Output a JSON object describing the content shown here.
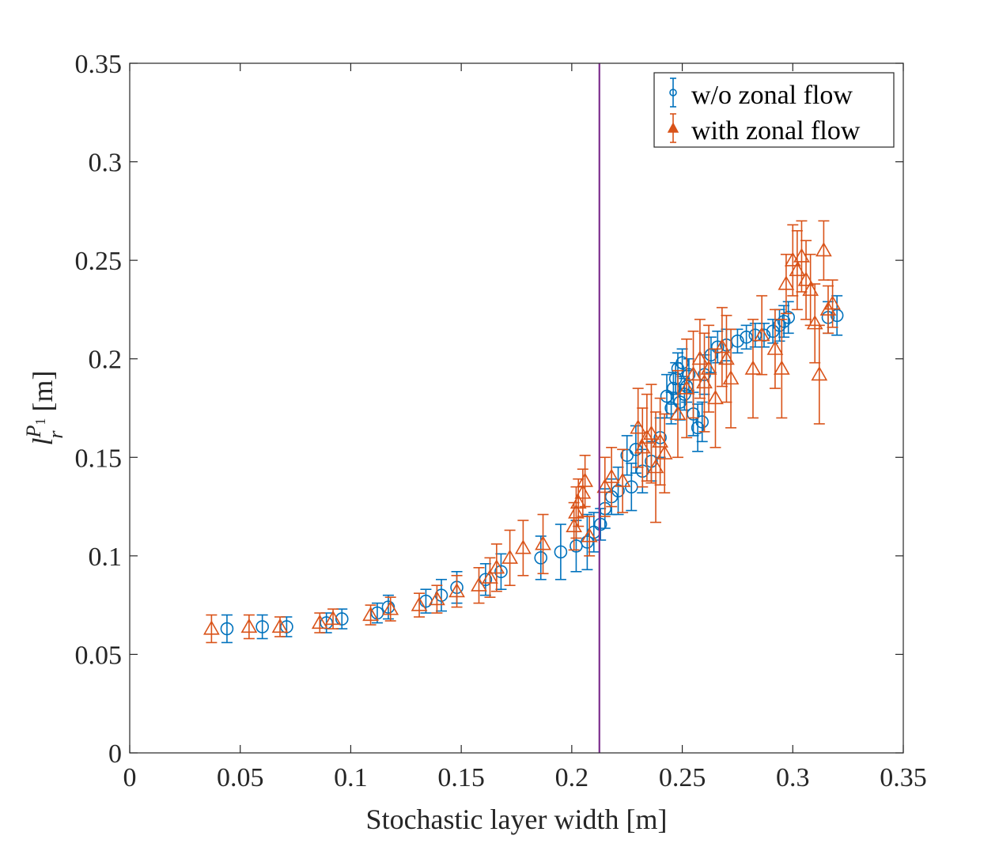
{
  "chart_data": {
    "type": "scatter",
    "title": "",
    "xlabel": "Stochastic layer width [m]",
    "ylabel_base": "l",
    "ylabel_sub": "r",
    "ylabel_sup_base": "P",
    "ylabel_sup_sub": "1",
    "ylabel_unit": "[m]",
    "xlim": [
      0,
      0.35
    ],
    "ylim": [
      0,
      0.35
    ],
    "xticks": [
      "0",
      "0.05",
      "0.1",
      "0.15",
      "0.2",
      "0.25",
      "0.3",
      "0.35"
    ],
    "yticks": [
      "0",
      "0.05",
      "0.1",
      "0.15",
      "0.2",
      "0.25",
      "0.3",
      "0.35"
    ],
    "xtick_values": [
      0,
      0.05,
      0.1,
      0.15,
      0.2,
      0.25,
      0.3,
      0.35
    ],
    "ytick_values": [
      0,
      0.05,
      0.1,
      0.15,
      0.2,
      0.25,
      0.3,
      0.35
    ],
    "vline_x": 0.2125,
    "vline_color": "#7E2F8E",
    "legend_position": "top-right",
    "series": [
      {
        "name": "w/o zonal flow",
        "marker": "circle",
        "color": "#0072BD",
        "points": [
          [
            0.044,
            0.063,
            0.007
          ],
          [
            0.06,
            0.064,
            0.006
          ],
          [
            0.071,
            0.064,
            0.005
          ],
          [
            0.089,
            0.066,
            0.005
          ],
          [
            0.096,
            0.068,
            0.005
          ],
          [
            0.112,
            0.071,
            0.005
          ],
          [
            0.117,
            0.074,
            0.006
          ],
          [
            0.134,
            0.077,
            0.006
          ],
          [
            0.141,
            0.08,
            0.008
          ],
          [
            0.148,
            0.084,
            0.008
          ],
          [
            0.161,
            0.088,
            0.008
          ],
          [
            0.168,
            0.092,
            0.009
          ],
          [
            0.186,
            0.099,
            0.011
          ],
          [
            0.195,
            0.102,
            0.014
          ],
          [
            0.202,
            0.105,
            0.013
          ],
          [
            0.207,
            0.107,
            0.014
          ],
          [
            0.21,
            0.112,
            0.01
          ],
          [
            0.213,
            0.116,
            0.008
          ],
          [
            0.215,
            0.124,
            0.01
          ],
          [
            0.218,
            0.13,
            0.009
          ],
          [
            0.221,
            0.133,
            0.012
          ],
          [
            0.225,
            0.151,
            0.01
          ],
          [
            0.227,
            0.135,
            0.012
          ],
          [
            0.229,
            0.154,
            0.012
          ],
          [
            0.232,
            0.143,
            0.011
          ],
          [
            0.236,
            0.148,
            0.01
          ],
          [
            0.24,
            0.16,
            0.01
          ],
          [
            0.243,
            0.181,
            0.011
          ],
          [
            0.245,
            0.175,
            0.008
          ],
          [
            0.246,
            0.185,
            0.008
          ],
          [
            0.247,
            0.19,
            0.008
          ],
          [
            0.248,
            0.195,
            0.008
          ],
          [
            0.249,
            0.178,
            0.009
          ],
          [
            0.25,
            0.198,
            0.007
          ],
          [
            0.251,
            0.182,
            0.008
          ],
          [
            0.252,
            0.186,
            0.008
          ],
          [
            0.253,
            0.192,
            0.008
          ],
          [
            0.255,
            0.172,
            0.011
          ],
          [
            0.257,
            0.165,
            0.012
          ],
          [
            0.259,
            0.168,
            0.01
          ],
          [
            0.26,
            0.192,
            0.01
          ],
          [
            0.263,
            0.202,
            0.009
          ],
          [
            0.266,
            0.206,
            0.008
          ],
          [
            0.27,
            0.207,
            0.008
          ],
          [
            0.275,
            0.209,
            0.006
          ],
          [
            0.279,
            0.211,
            0.006
          ],
          [
            0.283,
            0.212,
            0.006
          ],
          [
            0.287,
            0.212,
            0.006
          ],
          [
            0.291,
            0.214,
            0.006
          ],
          [
            0.294,
            0.217,
            0.008
          ],
          [
            0.296,
            0.219,
            0.008
          ],
          [
            0.298,
            0.221,
            0.008
          ],
          [
            0.316,
            0.221,
            0.008
          ],
          [
            0.32,
            0.222,
            0.01
          ]
        ]
      },
      {
        "name": "with zonal flow",
        "marker": "triangle",
        "color": "#D95319",
        "points": [
          [
            0.037,
            0.063,
            0.007
          ],
          [
            0.054,
            0.064,
            0.006
          ],
          [
            0.068,
            0.064,
            0.005
          ],
          [
            0.086,
            0.066,
            0.005
          ],
          [
            0.092,
            0.068,
            0.005
          ],
          [
            0.109,
            0.07,
            0.005
          ],
          [
            0.118,
            0.073,
            0.006
          ],
          [
            0.131,
            0.075,
            0.006
          ],
          [
            0.139,
            0.078,
            0.007
          ],
          [
            0.148,
            0.082,
            0.008
          ],
          [
            0.158,
            0.085,
            0.009
          ],
          [
            0.163,
            0.089,
            0.01
          ],
          [
            0.166,
            0.094,
            0.012
          ],
          [
            0.172,
            0.099,
            0.014
          ],
          [
            0.178,
            0.104,
            0.014
          ],
          [
            0.187,
            0.106,
            0.015
          ],
          [
            0.201,
            0.115,
            0.012
          ],
          [
            0.202,
            0.122,
            0.013
          ],
          [
            0.203,
            0.127,
            0.012
          ],
          [
            0.205,
            0.132,
            0.012
          ],
          [
            0.206,
            0.138,
            0.013
          ],
          [
            0.208,
            0.11,
            0.01
          ],
          [
            0.215,
            0.135,
            0.015
          ],
          [
            0.218,
            0.14,
            0.015
          ],
          [
            0.223,
            0.138,
            0.016
          ],
          [
            0.23,
            0.165,
            0.02
          ],
          [
            0.232,
            0.155,
            0.02
          ],
          [
            0.234,
            0.16,
            0.022
          ],
          [
            0.236,
            0.162,
            0.025
          ],
          [
            0.238,
            0.145,
            0.028
          ],
          [
            0.24,
            0.158,
            0.022
          ],
          [
            0.242,
            0.152,
            0.02
          ],
          [
            0.248,
            0.172,
            0.022
          ],
          [
            0.252,
            0.185,
            0.025
          ],
          [
            0.255,
            0.192,
            0.022
          ],
          [
            0.258,
            0.2,
            0.02
          ],
          [
            0.26,
            0.188,
            0.025
          ],
          [
            0.262,
            0.195,
            0.022
          ],
          [
            0.265,
            0.18,
            0.025
          ],
          [
            0.268,
            0.206,
            0.02
          ],
          [
            0.27,
            0.2,
            0.022
          ],
          [
            0.272,
            0.19,
            0.025
          ],
          [
            0.282,
            0.195,
            0.025
          ],
          [
            0.286,
            0.212,
            0.02
          ],
          [
            0.292,
            0.205,
            0.02
          ],
          [
            0.295,
            0.195,
            0.025
          ],
          [
            0.297,
            0.238,
            0.015
          ],
          [
            0.3,
            0.25,
            0.018
          ],
          [
            0.302,
            0.245,
            0.02
          ],
          [
            0.304,
            0.252,
            0.018
          ],
          [
            0.306,
            0.24,
            0.02
          ],
          [
            0.308,
            0.235,
            0.018
          ],
          [
            0.31,
            0.218,
            0.02
          ],
          [
            0.312,
            0.192,
            0.025
          ],
          [
            0.314,
            0.255,
            0.015
          ],
          [
            0.316,
            0.225,
            0.012
          ],
          [
            0.318,
            0.228,
            0.012
          ]
        ]
      }
    ]
  }
}
